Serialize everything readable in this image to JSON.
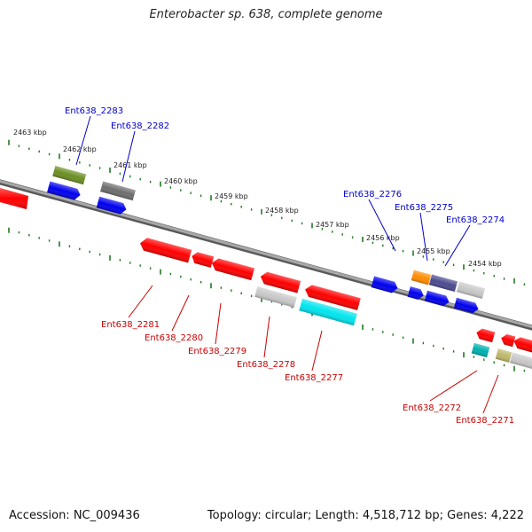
{
  "title": "Enterobacter sp. 638, complete genome",
  "footer": {
    "accession": "Accession: NC_009436",
    "summary": "Topology: circular; Length: 4,518,712 bp; Genes: 4,222"
  },
  "colors": {
    "backbone": "#8a8a8a",
    "ticks": "#1f7a1f",
    "top_labels": "#0000cc",
    "bottom_labels": "#cc0000",
    "red": "#ff0000",
    "blue": "#0000ee",
    "olive": "#6b8e23",
    "gray_dark": "#6e6e6e",
    "gray_light": "#c8c8c8",
    "cyan": "#00e5ee",
    "orange": "#ff8c00",
    "slate": "#4b4b8f",
    "teal": "#00b0b0",
    "khaki": "#bdb76b"
  },
  "kbp_ticks": [
    {
      "pos": 2463,
      "label": "2463 kbp"
    },
    {
      "pos": 2462,
      "label": "2462 kbp"
    },
    {
      "pos": 2461,
      "label": "2461 kbp"
    },
    {
      "pos": 2460,
      "label": "2460 kbp"
    },
    {
      "pos": 2459,
      "label": "2459 kbp"
    },
    {
      "pos": 2458,
      "label": "2458 kbp"
    },
    {
      "pos": 2457,
      "label": "2457 kbp"
    },
    {
      "pos": 2456,
      "label": "2456 kbp"
    },
    {
      "pos": 2455,
      "label": "2455 kbp"
    },
    {
      "pos": 2454,
      "label": "2454 kbp"
    }
  ],
  "top_gene_labels": [
    "Ent638_2283",
    "Ent638_2282",
    "Ent638_2276",
    "Ent638_2275",
    "Ent638_2274"
  ],
  "bottom_gene_labels": [
    "Ent638_2281",
    "Ent638_2280",
    "Ent638_2279",
    "Ent638_2278",
    "Ent638_2277",
    "Ent638_2272",
    "Ent638_2271"
  ]
}
